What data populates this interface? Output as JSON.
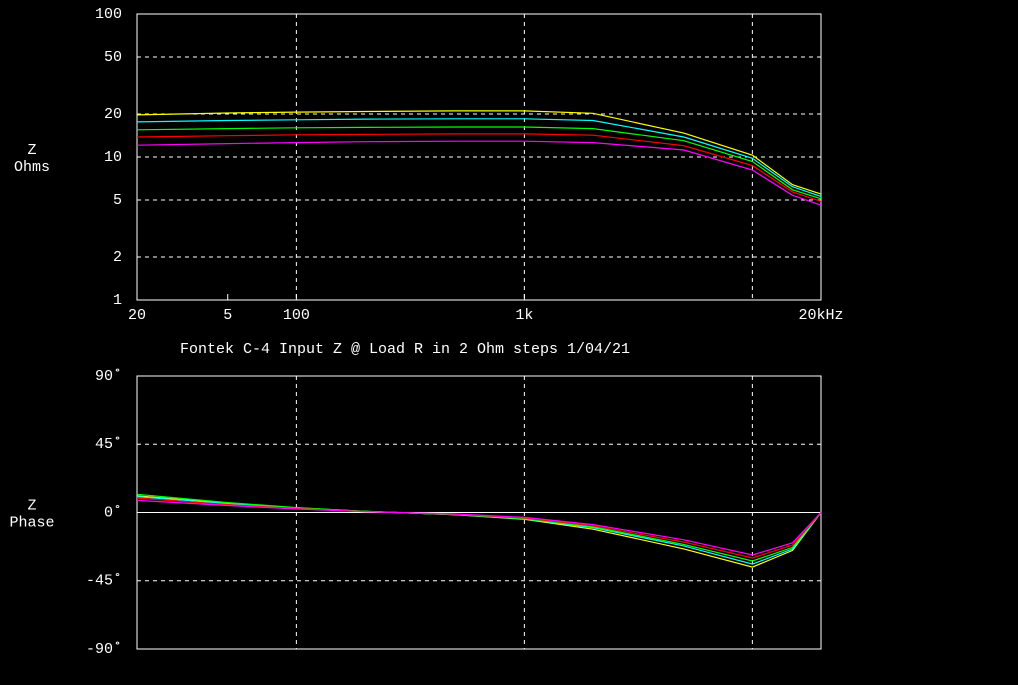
{
  "title": "Fontek C-4 Input Z @ Load R in 2 Ohm steps  1/04/21",
  "chart_data": [
    {
      "type": "line",
      "ylabel": [
        "Z",
        "Ohms"
      ],
      "xlog": true,
      "ylog": true,
      "x": [
        20,
        50,
        100,
        200,
        500,
        1000,
        2000,
        5000,
        10000,
        15000,
        20000
      ],
      "xlim": [
        20,
        20000
      ],
      "xticks": [
        20,
        {
          "value": 50,
          "label": "5"
        },
        100,
        {
          "value": 1000,
          "label": "1k"
        },
        {
          "value": 20000,
          "label": "20kHz"
        }
      ],
      "xgrid": [
        100,
        1000,
        10000
      ],
      "ylim": [
        1,
        100
      ],
      "yticks": [
        1,
        2,
        5,
        10,
        20,
        50,
        100
      ],
      "grid": true,
      "series": [
        {
          "color": "#ffff00",
          "values": [
            19.7,
            20.3,
            20.6,
            20.8,
            21.0,
            21.0,
            20.2,
            14.7,
            10.3,
            6.4,
            5.5
          ]
        },
        {
          "color": "#00ffff",
          "values": [
            17.6,
            18.0,
            18.2,
            18.4,
            18.5,
            18.5,
            18.0,
            13.8,
            9.8,
            6.2,
            5.3
          ]
        },
        {
          "color": "#00ff00",
          "values": [
            15.5,
            15.8,
            16.0,
            16.1,
            16.2,
            16.2,
            15.8,
            13.0,
            9.3,
            5.9,
            5.1
          ]
        },
        {
          "color": "#ff0000",
          "values": [
            13.8,
            14.1,
            14.3,
            14.4,
            14.5,
            14.5,
            14.2,
            12.0,
            8.7,
            5.7,
            4.9
          ]
        },
        {
          "color": "#ff00ff",
          "values": [
            12.1,
            12.4,
            12.6,
            12.8,
            12.9,
            12.9,
            12.6,
            11.2,
            8.1,
            5.4,
            4.6
          ]
        }
      ]
    },
    {
      "type": "line",
      "ylabel": [
        "Z",
        "Phase"
      ],
      "xlog": true,
      "ylog": false,
      "x": [
        20,
        50,
        100,
        200,
        500,
        1000,
        2000,
        5000,
        10000,
        15000,
        20000
      ],
      "xlim": [
        20,
        20000
      ],
      "xgrid": [
        100,
        1000,
        10000
      ],
      "ylim": [
        -90,
        90
      ],
      "yticks": [
        {
          "value": -90,
          "label": "-90˚"
        },
        {
          "value": -45,
          "label": "-45˚"
        },
        {
          "value": 0,
          "label": "0˚"
        },
        {
          "value": 45,
          "label": "45˚"
        },
        {
          "value": 90,
          "label": "90˚"
        }
      ],
      "grid": true,
      "zero_line": true,
      "series": [
        {
          "color": "#ffff00",
          "values": [
            11,
            6,
            3,
            0.8,
            -1.5,
            -4.5,
            -11,
            -24,
            -36,
            -25,
            0
          ]
        },
        {
          "color": "#00ffff",
          "values": [
            10.5,
            5.8,
            2.9,
            0.7,
            -1.4,
            -4.2,
            -10,
            -22,
            -34,
            -24,
            0
          ]
        },
        {
          "color": "#00ff00",
          "values": [
            12,
            6.5,
            3.2,
            0.8,
            -1.3,
            -4,
            -9.5,
            -21,
            -32,
            -23,
            0
          ]
        },
        {
          "color": "#ff0000",
          "values": [
            9.5,
            5.2,
            2.6,
            0.6,
            -1.2,
            -3.6,
            -8.8,
            -19.5,
            -30,
            -21.5,
            0
          ]
        },
        {
          "color": "#ff00ff",
          "values": [
            8,
            4.6,
            2.3,
            0.5,
            -1,
            -3.2,
            -8,
            -18,
            -28,
            -20,
            0
          ]
        }
      ]
    }
  ]
}
